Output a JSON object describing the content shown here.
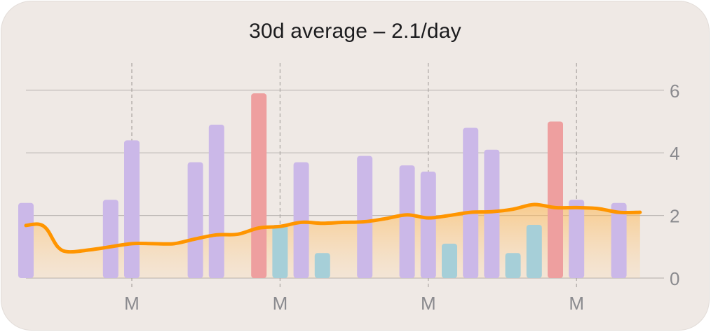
{
  "card": {
    "title": "30d average – 2.1/day"
  },
  "chart_data": {
    "type": "bar",
    "title": "30d average – 2.1/day",
    "xlabel": "",
    "ylabel": "",
    "ylim": [
      0,
      6.6
    ],
    "yticks": [
      0,
      2,
      4,
      6
    ],
    "grid": true,
    "x_tick_labels": [
      {
        "label": "M",
        "day_index": 5
      },
      {
        "label": "M",
        "day_index": 12
      },
      {
        "label": "M",
        "day_index": 19
      },
      {
        "label": "M",
        "day_index": 26
      }
    ],
    "days": 30,
    "series": [
      {
        "color": "#cbb8e8",
        "values": [
          2.4,
          0,
          0,
          0,
          2.5,
          4.4,
          0,
          0,
          3.7,
          4.9,
          0,
          0,
          0,
          3.7,
          0,
          0,
          3.9,
          0,
          3.6,
          3.4,
          0,
          4.8,
          4.1,
          0,
          0,
          0,
          2.5,
          0,
          2.4,
          0
        ]
      },
      {
        "color": "#ee9f9f",
        "values": [
          0,
          0,
          0,
          0,
          0,
          0,
          0,
          0,
          0,
          0,
          0,
          5.9,
          0,
          0,
          0,
          0,
          0,
          0,
          0,
          0,
          0,
          0,
          0,
          0,
          0,
          5.0,
          0,
          0,
          0,
          0
        ]
      },
      {
        "color": "#a6cfd8",
        "values": [
          0,
          0,
          0,
          0,
          0,
          0,
          0,
          0,
          0,
          0,
          0,
          0,
          1.7,
          0,
          0.8,
          0,
          0,
          0,
          0,
          0,
          1.1,
          0,
          0,
          0.8,
          1.7,
          0,
          0,
          0,
          0,
          0
        ]
      }
    ],
    "average_line": {
      "color": "#ff9500",
      "x": [
        0,
        0.6,
        1,
        1.5,
        2,
        3,
        4,
        5,
        6,
        7,
        8,
        9,
        10,
        11,
        12,
        13,
        14,
        15,
        16,
        17,
        18,
        19,
        20,
        21,
        22,
        23,
        24,
        25,
        26,
        27,
        28,
        29
      ],
      "y": [
        1.68,
        1.72,
        1.55,
        1.0,
        0.84,
        0.9,
        1.0,
        1.1,
        1.1,
        1.1,
        1.25,
        1.38,
        1.4,
        1.6,
        1.65,
        1.78,
        1.75,
        1.78,
        1.8,
        1.9,
        2.02,
        1.92,
        2.0,
        2.1,
        2.12,
        2.2,
        2.35,
        2.25,
        2.25,
        2.22,
        2.1,
        2.1
      ]
    }
  }
}
